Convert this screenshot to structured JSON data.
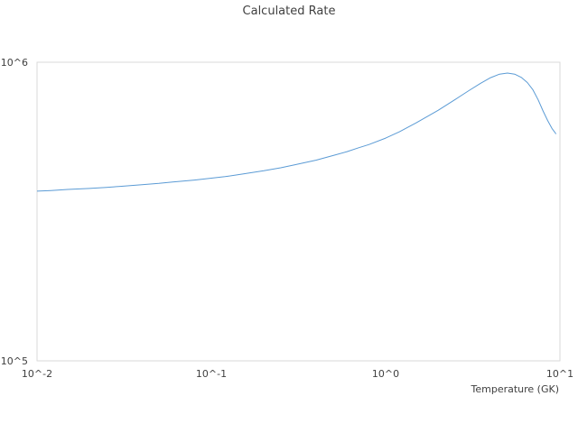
{
  "chart_data": {
    "type": "line",
    "title": "Calculated Rate",
    "xlabel": "Temperature (GK)",
    "ylabel": "",
    "x_scale": "log",
    "y_scale": "log",
    "xlim": [
      0.01,
      10
    ],
    "ylim": [
      100000,
      1000000
    ],
    "x_tick_labels": [
      "10^-2",
      "10^-1",
      "10^0",
      "10^1"
    ],
    "y_tick_labels": [
      "10^5",
      "10^6"
    ],
    "grid": false,
    "legend": "none",
    "series": [
      {
        "name": "",
        "color": "#5b9bd5",
        "x": [
          0.01,
          0.012,
          0.015,
          0.02,
          0.025,
          0.03,
          0.04,
          0.05,
          0.06,
          0.08,
          0.1,
          0.12,
          0.15,
          0.2,
          0.25,
          0.3,
          0.4,
          0.5,
          0.6,
          0.7,
          0.8,
          1.0,
          1.2,
          1.5,
          2.0,
          2.5,
          3.0,
          3.5,
          4.0,
          4.5,
          5.0,
          5.5,
          6.0,
          6.5,
          7.0,
          7.5,
          8.0,
          8.5,
          9.0,
          9.5
        ],
        "y": [
          370000,
          372000,
          375000,
          378000,
          381000,
          384000,
          389000,
          393000,
          397000,
          403000,
          409000,
          414000,
          422000,
          433000,
          443000,
          453000,
          470000,
          487000,
          502000,
          517000,
          530000,
          557000,
          585000,
          627000,
          690000,
          750000,
          803000,
          850000,
          888000,
          912000,
          920000,
          912000,
          890000,
          855000,
          808000,
          748000,
          687000,
          638000,
          600000,
          575000
        ]
      }
    ]
  }
}
